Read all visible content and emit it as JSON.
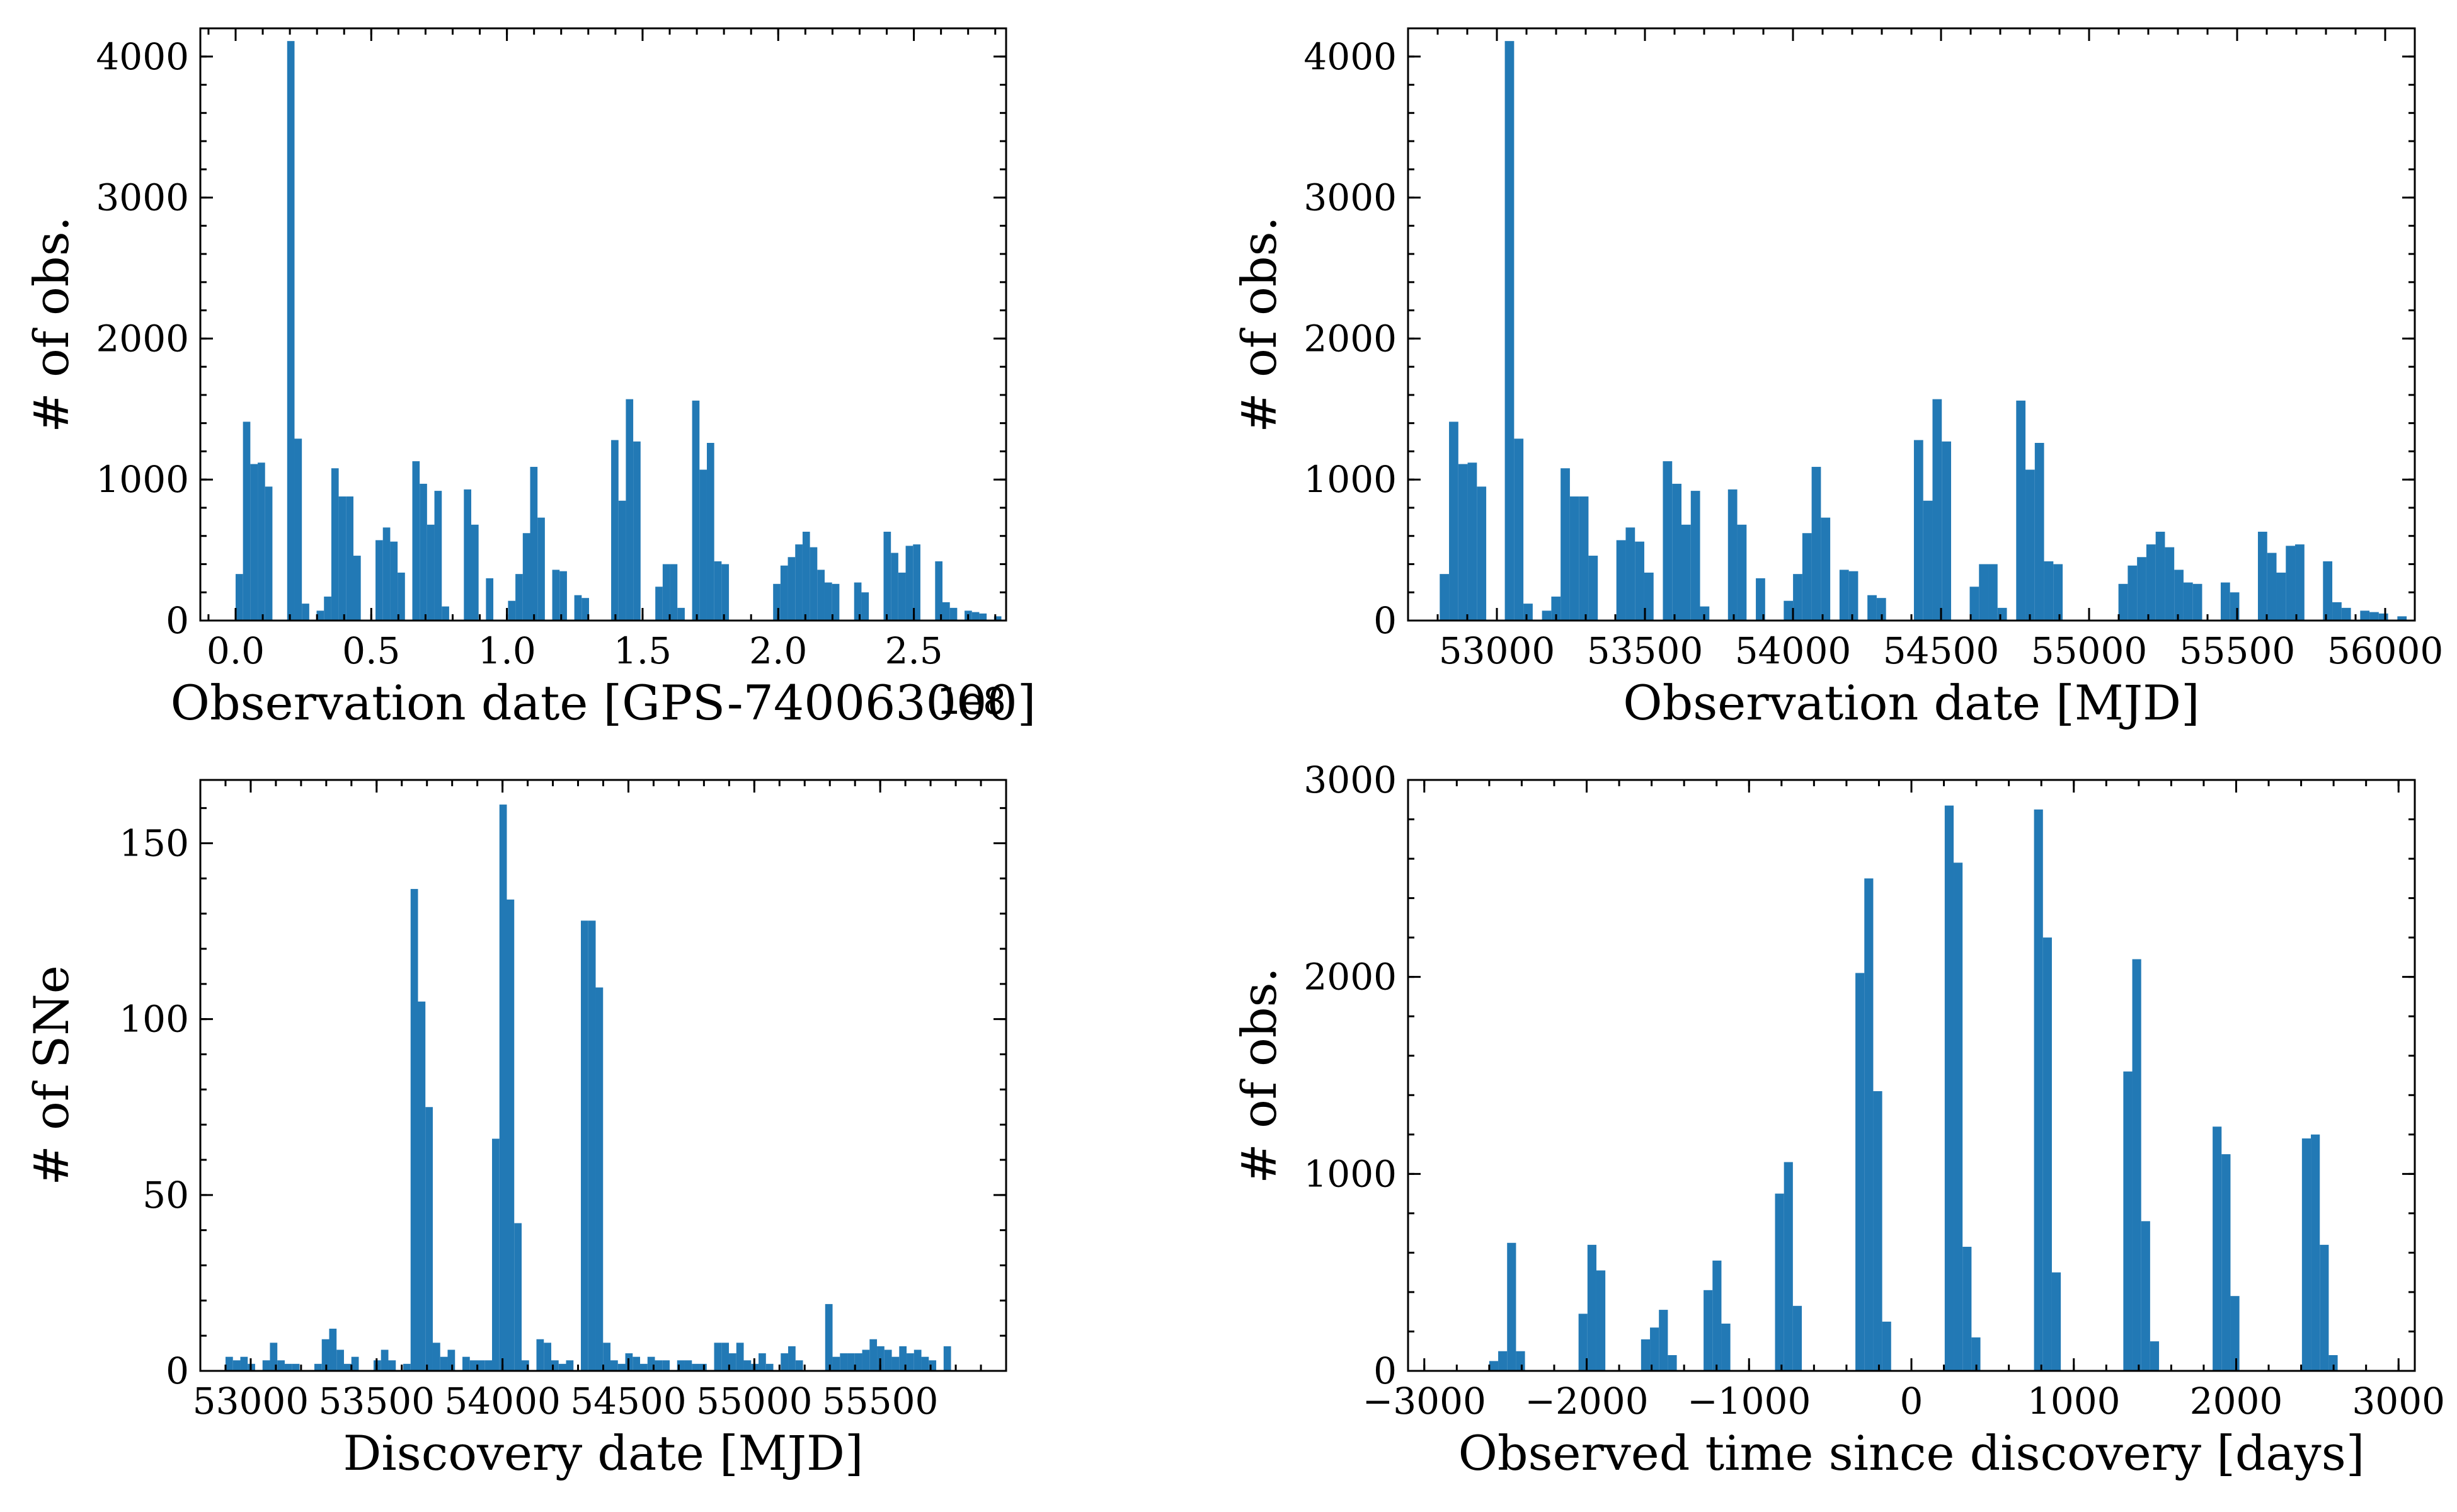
{
  "colors": {
    "bar": "#2279b5",
    "axis": "#000000"
  },
  "chart_data": [
    {
      "type": "bar",
      "xlabel": "Observation date [GPS-740063000]",
      "ylabel": "# of obs.",
      "offset_text": "1e8",
      "xlim": [
        -0.13,
        2.84
      ],
      "ylim": [
        0,
        4200
      ],
      "xticks": [
        {
          "v": 0.0,
          "t": "0.0"
        },
        {
          "v": 0.5,
          "t": "0.5"
        },
        {
          "v": 1.0,
          "t": "1.0"
        },
        {
          "v": 1.5,
          "t": "1.5"
        },
        {
          "v": 2.0,
          "t": "2.0"
        },
        {
          "v": 2.5,
          "t": "2.5"
        }
      ],
      "yticks": [
        {
          "v": 0,
          "t": "0"
        },
        {
          "v": 1000,
          "t": "1000"
        },
        {
          "v": 2000,
          "t": "2000"
        },
        {
          "v": 3000,
          "t": "3000"
        },
        {
          "v": 4000,
          "t": "4000"
        }
      ],
      "bin_start": 0.0,
      "bin_width": 0.02714,
      "values": [
        330,
        1410,
        1110,
        1120,
        950,
        0,
        0,
        4110,
        1290,
        120,
        0,
        70,
        170,
        1080,
        880,
        880,
        460,
        0,
        0,
        570,
        660,
        560,
        340,
        0,
        1130,
        970,
        680,
        920,
        100,
        0,
        0,
        930,
        680,
        0,
        300,
        0,
        0,
        140,
        330,
        620,
        1090,
        730,
        0,
        360,
        350,
        0,
        180,
        160,
        0,
        0,
        0,
        1280,
        850,
        1570,
        1270,
        0,
        0,
        240,
        400,
        400,
        90,
        0,
        1560,
        1070,
        1260,
        420,
        400,
        0,
        0,
        0,
        0,
        0,
        0,
        260,
        390,
        450,
        540,
        630,
        520,
        360,
        270,
        260,
        0,
        0,
        270,
        200,
        0,
        0,
        630,
        480,
        340,
        530,
        540,
        0,
        0,
        420,
        130,
        90,
        0,
        70,
        60,
        50,
        0,
        30
      ]
    },
    {
      "type": "bar",
      "xlabel": "Observation date [MJD]",
      "ylabel": "# of obs.",
      "xlim": [
        52700,
        56100
      ],
      "ylim": [
        0,
        4200
      ],
      "xticks": [
        {
          "v": 53000,
          "t": "53000"
        },
        {
          "v": 53500,
          "t": "53500"
        },
        {
          "v": 54000,
          "t": "54000"
        },
        {
          "v": 54500,
          "t": "54500"
        },
        {
          "v": 55000,
          "t": "55000"
        },
        {
          "v": 55500,
          "t": "55500"
        },
        {
          "v": 56000,
          "t": "56000"
        }
      ],
      "yticks": [
        {
          "v": 0,
          "t": "0"
        },
        {
          "v": 1000,
          "t": "1000"
        },
        {
          "v": 2000,
          "t": "2000"
        },
        {
          "v": 3000,
          "t": "3000"
        },
        {
          "v": 4000,
          "t": "4000"
        }
      ],
      "bin_start": 52807,
      "bin_width": 31.4,
      "values": [
        330,
        1410,
        1110,
        1120,
        950,
        0,
        0,
        4110,
        1290,
        120,
        0,
        70,
        170,
        1080,
        880,
        880,
        460,
        0,
        0,
        570,
        660,
        560,
        340,
        0,
        1130,
        970,
        680,
        920,
        100,
        0,
        0,
        930,
        680,
        0,
        300,
        0,
        0,
        140,
        330,
        620,
        1090,
        730,
        0,
        360,
        350,
        0,
        180,
        160,
        0,
        0,
        0,
        1280,
        850,
        1570,
        1270,
        0,
        0,
        240,
        400,
        400,
        90,
        0,
        1560,
        1070,
        1260,
        420,
        400,
        0,
        0,
        0,
        0,
        0,
        0,
        260,
        390,
        450,
        540,
        630,
        520,
        360,
        270,
        260,
        0,
        0,
        270,
        200,
        0,
        0,
        630,
        480,
        340,
        530,
        540,
        0,
        0,
        420,
        130,
        90,
        0,
        70,
        60,
        50,
        0,
        30
      ]
    },
    {
      "type": "bar",
      "xlabel": "Discovery date [MJD]",
      "ylabel": "# of SNe",
      "xlim": [
        52800,
        56000
      ],
      "ylim": [
        0,
        168
      ],
      "xticks": [
        {
          "v": 53000,
          "t": "53000"
        },
        {
          "v": 53500,
          "t": "53500"
        },
        {
          "v": 54000,
          "t": "54000"
        },
        {
          "v": 54500,
          "t": "54500"
        },
        {
          "v": 55000,
          "t": "55000"
        },
        {
          "v": 55500,
          "t": "55500"
        }
      ],
      "yticks": [
        {
          "v": 0,
          "t": "0"
        },
        {
          "v": 50,
          "t": "50"
        },
        {
          "v": 100,
          "t": "100"
        },
        {
          "v": 150,
          "t": "150"
        }
      ],
      "bin_start": 52900,
      "bin_width": 29.4,
      "values": [
        4,
        3,
        4,
        2,
        0,
        3,
        8,
        3,
        2,
        2,
        0,
        0,
        2,
        9,
        12,
        6,
        2,
        4,
        0,
        0,
        3,
        6,
        3,
        0,
        2,
        137,
        105,
        75,
        8,
        4,
        6,
        0,
        4,
        3,
        3,
        3,
        66,
        161,
        134,
        42,
        3,
        0,
        9,
        8,
        3,
        2,
        3,
        0,
        128,
        128,
        109,
        8,
        3,
        2,
        5,
        4,
        2,
        4,
        3,
        3,
        0,
        3,
        3,
        2,
        2,
        0,
        8,
        8,
        5,
        8,
        3,
        2,
        5,
        2,
        0,
        5,
        7,
        3,
        0,
        0,
        0,
        19,
        4,
        5,
        5,
        5,
        6,
        9,
        7,
        6,
        4,
        7,
        5,
        6,
        4,
        3,
        0,
        7,
        0,
        0
      ]
    },
    {
      "type": "bar",
      "xlabel": "Observed time since discovery [days]",
      "ylabel": "# of obs.",
      "xlim": [
        -3100,
        3100
      ],
      "ylim": [
        0,
        3000
      ],
      "xticks": [
        {
          "v": -3000,
          "t": "−3000"
        },
        {
          "v": -2000,
          "t": "−2000"
        },
        {
          "v": -1000,
          "t": "−1000"
        },
        {
          "v": 0,
          "t": "0"
        },
        {
          "v": 1000,
          "t": "1000"
        },
        {
          "v": 2000,
          "t": "2000"
        },
        {
          "v": 3000,
          "t": "3000"
        }
      ],
      "yticks": [
        {
          "v": 0,
          "t": "0"
        },
        {
          "v": 1000,
          "t": "1000"
        },
        {
          "v": 2000,
          "t": "2000"
        },
        {
          "v": 3000,
          "t": "3000"
        }
      ],
      "bin_start": -2600,
      "bin_width": 55,
      "values": [
        50,
        100,
        650,
        100,
        0,
        0,
        0,
        0,
        0,
        0,
        290,
        640,
        510,
        0,
        0,
        0,
        0,
        160,
        220,
        310,
        80,
        0,
        0,
        0,
        410,
        560,
        240,
        0,
        0,
        0,
        0,
        0,
        900,
        1060,
        330,
        0,
        0,
        0,
        0,
        0,
        0,
        2020,
        2500,
        1420,
        250,
        0,
        0,
        0,
        0,
        0,
        0,
        2870,
        2580,
        630,
        170,
        0,
        0,
        0,
        0,
        0,
        0,
        2850,
        2200,
        500,
        0,
        0,
        0,
        0,
        0,
        0,
        0,
        1520,
        2090,
        760,
        150,
        0,
        0,
        0,
        0,
        0,
        0,
        1240,
        1100,
        380,
        0,
        0,
        0,
        0,
        0,
        0,
        0,
        1180,
        1200,
        640,
        80,
        0,
        0,
        0,
        0,
        0,
        0,
        0,
        0,
        0
      ]
    }
  ]
}
